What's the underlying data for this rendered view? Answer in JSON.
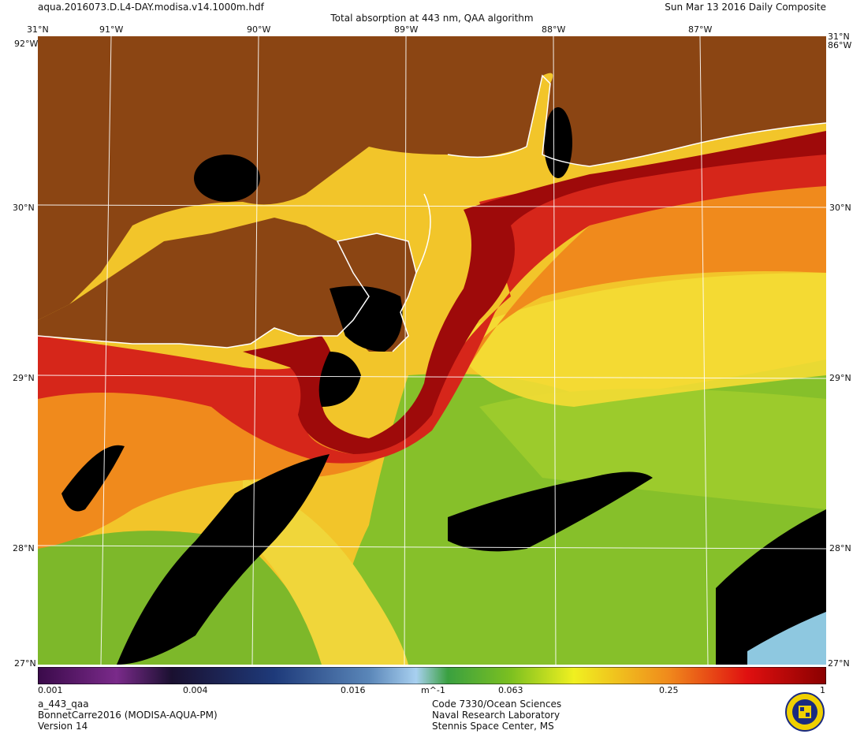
{
  "header": {
    "filename": "aqua.2016073.D.L4-DAY.modisa.v14.1000m.hdf",
    "title": "Total absorption at 443 nm, QAA algorithm",
    "date": "Sun Mar 13 2016 Daily Composite"
  },
  "map": {
    "lon_labels": [
      "91°W",
      "90°W",
      "89°W",
      "88°W",
      "87°W"
    ],
    "lat_labels": [
      "30°N",
      "29°N",
      "28°N"
    ],
    "corner_top": "31°N",
    "corner_left": "92°W",
    "corner_bottom": "27°N",
    "corner_right": "86°W",
    "colors": {
      "land": "#8b4513",
      "coast": "#ffffff",
      "no_data": "#000000",
      "grid": "#ffffff"
    }
  },
  "colorbar": {
    "ticks": [
      "0.001",
      "0.004",
      "0.016",
      "0.063",
      "0.25",
      "1"
    ],
    "unit": "m^-1"
  },
  "footer": {
    "product": "a_443_qaa",
    "source": "BonnetCarre2016 (MODISA-AQUA-PM)",
    "version": "Version 14",
    "org_code": "Code 7330/Ocean Sciences",
    "org_name": "Naval Research Laboratory",
    "org_place": "Stennis Space Center, MS"
  }
}
